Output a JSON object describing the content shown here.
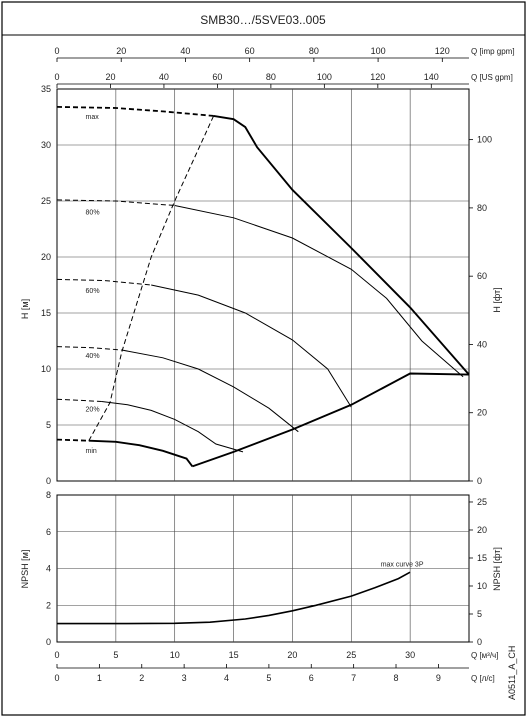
{
  "title": "SMB30…/5SVE03..005",
  "side_label": "A0511_A_CH",
  "colors": {
    "line": "#000000",
    "grid": "#444444",
    "text": "#222222"
  },
  "axes": {
    "imp_gpm": {
      "label": "Q [imp gpm]",
      "ticks": [
        "0",
        "20",
        "40",
        "60",
        "80",
        "100",
        "120"
      ]
    },
    "us_gpm": {
      "label": "Q [US gpm]",
      "ticks": [
        "0",
        "20",
        "40",
        "60",
        "80",
        "100",
        "120",
        "140"
      ]
    },
    "m3h": {
      "label": "Q [м³/ч]",
      "ticks": [
        "0",
        "5",
        "10",
        "15",
        "20",
        "25",
        "30"
      ]
    },
    "ls": {
      "label": "Q [л/с]",
      "ticks": [
        "0",
        "1",
        "2",
        "3",
        "4",
        "5",
        "6",
        "7",
        "8",
        "9"
      ]
    },
    "h_m": {
      "label": "H [м]",
      "ticks": [
        "0",
        "5",
        "10",
        "15",
        "20",
        "25",
        "30",
        "35"
      ]
    },
    "h_ft": {
      "label": "H [фт]",
      "ticks": [
        "0",
        "20",
        "40",
        "60",
        "80",
        "100"
      ]
    },
    "npsh_m": {
      "label": "NPSH [м]",
      "ticks": [
        "0",
        "2",
        "4",
        "6",
        "8"
      ]
    },
    "npsh_ft": {
      "label": "NPSH [фт]",
      "ticks": [
        "0",
        "5",
        "10",
        "15",
        "20",
        "25"
      ]
    }
  },
  "chart_data": [
    {
      "type": "line",
      "title": "",
      "xlabel": "Q [м³/ч]",
      "ylabel": "H [м]",
      "xlim": [
        0,
        35
      ],
      "ylim": [
        0,
        35
      ],
      "grid": true,
      "series": [
        {
          "name": "max",
          "style": "solid-bold",
          "dashed_prefix": [
            [
              0,
              33.4
            ],
            [
              5,
              33.3
            ],
            [
              9,
              33.0
            ],
            [
              13.3,
              32.6
            ]
          ],
          "points": [
            [
              13.3,
              32.6
            ],
            [
              15,
              32.3
            ],
            [
              16,
              31.6
            ],
            [
              17,
              29.8
            ],
            [
              20,
              26.0
            ],
            [
              25,
              20.8
            ],
            [
              30,
              15.5
            ],
            [
              35,
              9.5
            ]
          ]
        },
        {
          "name": "80%",
          "style": "solid",
          "dashed_prefix": [
            [
              0,
              25.1
            ],
            [
              5,
              25.0
            ],
            [
              10,
              24.6
            ]
          ],
          "points": [
            [
              10,
              24.6
            ],
            [
              15,
              23.5
            ],
            [
              20,
              21.7
            ],
            [
              25,
              18.9
            ],
            [
              28,
              16.3
            ],
            [
              31,
              12.5
            ],
            [
              34.5,
              9.3
            ]
          ]
        },
        {
          "name": "60%",
          "style": "solid",
          "dashed_prefix": [
            [
              0,
              18.0
            ],
            [
              4,
              17.9
            ],
            [
              8,
              17.5
            ]
          ],
          "points": [
            [
              8,
              17.5
            ],
            [
              12,
              16.6
            ],
            [
              16,
              15.0
            ],
            [
              20,
              12.6
            ],
            [
              23,
              10.0
            ],
            [
              25,
              6.6
            ]
          ]
        },
        {
          "name": "40%",
          "style": "solid",
          "dashed_prefix": [
            [
              0,
              12.0
            ],
            [
              3,
              11.9
            ],
            [
              5.5,
              11.7
            ]
          ],
          "points": [
            [
              5.5,
              11.7
            ],
            [
              9,
              11.0
            ],
            [
              12,
              10.0
            ],
            [
              15,
              8.4
            ],
            [
              18,
              6.5
            ],
            [
              20.5,
              4.4
            ]
          ]
        },
        {
          "name": "20%",
          "style": "solid",
          "dashed_prefix": [
            [
              0,
              7.3
            ],
            [
              2,
              7.2
            ],
            [
              3.8,
              7.1
            ]
          ],
          "points": [
            [
              3.8,
              7.1
            ],
            [
              6,
              6.8
            ],
            [
              8,
              6.3
            ],
            [
              10,
              5.5
            ],
            [
              12,
              4.4
            ],
            [
              13.5,
              3.3
            ],
            [
              15.8,
              2.6
            ]
          ]
        },
        {
          "name": "min",
          "style": "solid-bold",
          "dashed_prefix": [
            [
              0,
              3.7
            ],
            [
              2.7,
              3.6
            ]
          ],
          "points": [
            [
              2.7,
              3.6
            ],
            [
              5,
              3.5
            ],
            [
              7,
              3.2
            ],
            [
              9,
              2.7
            ],
            [
              11,
              2.0
            ],
            [
              11.5,
              1.3
            ]
          ]
        },
        {
          "name": "",
          "style": "solid-bold",
          "points": [
            [
              11.5,
              1.3
            ],
            [
              15,
              2.6
            ],
            [
              20,
              4.6
            ],
            [
              25,
              6.8
            ],
            [
              30,
              9.6
            ],
            [
              35,
              9.5
            ]
          ]
        },
        {
          "name": "",
          "style": "dashed",
          "points": [
            [
              2.7,
              3.6
            ],
            [
              4.5,
              7.0
            ],
            [
              5.5,
              11.5
            ],
            [
              8,
              20.0
            ],
            [
              10,
              25.0
            ],
            [
              13.3,
              32.6
            ]
          ]
        }
      ],
      "annotations": [
        "max",
        "80%",
        "60%",
        "40%",
        "20%",
        "min"
      ]
    },
    {
      "type": "line",
      "title": "",
      "xlabel": "Q [м³/ч]",
      "ylabel": "NPSH [м]",
      "xlim": [
        0,
        35
      ],
      "ylim": [
        0,
        8
      ],
      "grid": true,
      "series": [
        {
          "name": "max curve 3P",
          "points": [
            [
              0,
              1.0
            ],
            [
              5,
              1.0
            ],
            [
              10,
              1.02
            ],
            [
              13,
              1.08
            ],
            [
              16,
              1.25
            ],
            [
              18,
              1.45
            ],
            [
              20,
              1.7
            ],
            [
              22,
              2.0
            ],
            [
              25,
              2.5
            ],
            [
              27,
              2.95
            ],
            [
              29,
              3.45
            ],
            [
              30,
              3.8
            ]
          ]
        }
      ],
      "annotations": [
        "max curve 3P"
      ]
    }
  ]
}
